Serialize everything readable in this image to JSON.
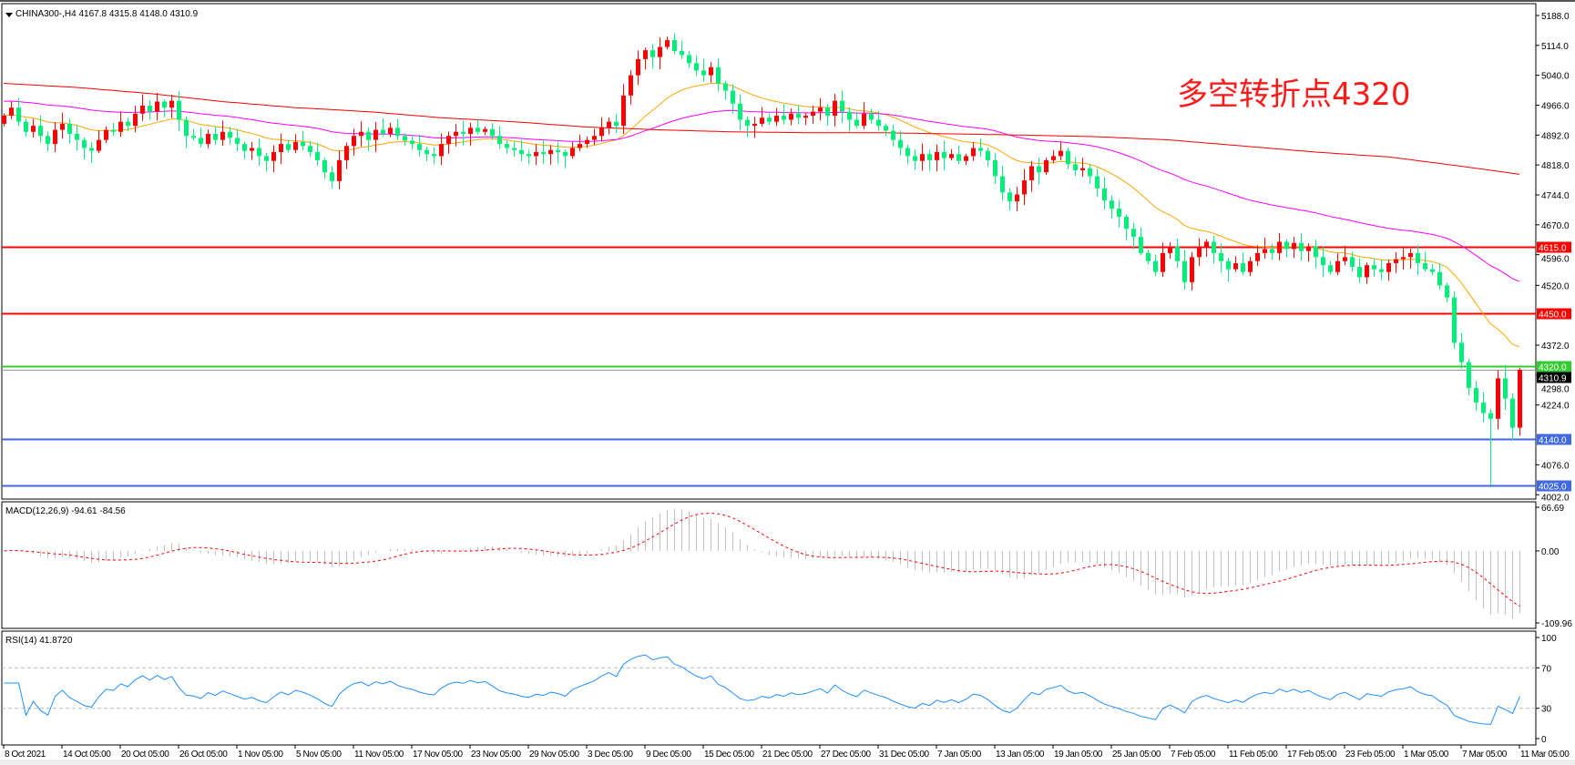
{
  "chart_data": {
    "type": "candlestick",
    "symbol_header": "CHINA300-,H4  4167.8 4315.8 4148.0 4310.9",
    "annotation": "多空转折点4320",
    "colors": {
      "up": "#ff0000",
      "down": "#00ee7a",
      "ma_fast": "#ffa500",
      "ma_mid": "#ff00ff",
      "ma_slow": "#ff0000",
      "rsi": "#1e90ff",
      "macd_hist": "#c0c0c0",
      "macd_signal": "#ff0000"
    },
    "price_axis": {
      "min": 4002.0,
      "max": 5188.0,
      "ticks": [
        "5188.0",
        "5114.0",
        "5040.0",
        "4966.0",
        "4892.0",
        "4818.0",
        "4744.0",
        "4670.0",
        "4596.0",
        "4520.0",
        "4372.0",
        "4298.0",
        "4224.0",
        "4076.0",
        "4002.0"
      ]
    },
    "first_open": 4920,
    "closes": [
      4940,
      4960,
      4925,
      4900,
      4915,
      4890,
      4870,
      4905,
      4920,
      4895,
      4880,
      4860,
      4853,
      4880,
      4905,
      4900,
      4925,
      4915,
      4945,
      4965,
      4950,
      4975,
      4960,
      4977,
      4930,
      4890,
      4885,
      4870,
      4895,
      4880,
      4900,
      4885,
      4870,
      4853,
      4860,
      4840,
      4828,
      4850,
      4870,
      4855,
      4875,
      4865,
      4850,
      4830,
      4800,
      4778,
      4830,
      4865,
      4890,
      4900,
      4880,
      4905,
      4895,
      4910,
      4890,
      4878,
      4870,
      4855,
      4845,
      4840,
      4870,
      4890,
      4900,
      4895,
      4910,
      4900,
      4907,
      4890,
      4870,
      4860,
      4855,
      4845,
      4840,
      4850,
      4845,
      4855,
      4850,
      4840,
      4860,
      4870,
      4880,
      4890,
      4910,
      4925,
      4915,
      4990,
      5040,
      5080,
      5102,
      5085,
      5110,
      5127,
      5100,
      5090,
      5070,
      5052,
      5040,
      5060,
      5020,
      5002,
      4970,
      4930,
      4915,
      4920,
      4935,
      4925,
      4940,
      4930,
      4945,
      4935,
      4940,
      4950,
      4960,
      4940,
      4977,
      4950,
      4930,
      4915,
      4945,
      4930,
      4915,
      4903,
      4880,
      4860,
      4840,
      4828,
      4845,
      4830,
      4850,
      4835,
      4845,
      4828,
      4840,
      4860,
      4853,
      4830,
      4790,
      4750,
      4728,
      4745,
      4780,
      4815,
      4800,
      4830,
      4840,
      4853,
      4820,
      4805,
      4810,
      4790,
      4760,
      4730,
      4710,
      4690,
      4660,
      4640,
      4600,
      4580,
      4553,
      4600,
      4616,
      4580,
      4528,
      4590,
      4615,
      4628,
      4600,
      4580,
      4560,
      4575,
      4553,
      4580,
      4600,
      4610,
      4600,
      4628,
      4610,
      4625,
      4605,
      4616,
      4590,
      4570,
      4553,
      4580,
      4590,
      4566,
      4540,
      4570,
      4560,
      4553,
      4575,
      4585,
      4590,
      4600,
      4575,
      4560,
      4553,
      4520,
      4490,
      4378,
      4330,
      4266,
      4230,
      4204,
      4190,
      4290,
      4240,
      4167.8,
      4310.9
    ],
    "last_bar": {
      "open": 4167.8,
      "high": 4315.8,
      "low": 4148.0,
      "close": 4310.9
    },
    "spike_low": 4025.0,
    "ma_slow_every_10_bars": [
      5020,
      5010,
      4995,
      4975,
      4960,
      4950,
      4935,
      4925,
      4912,
      4905,
      4900,
      4898,
      4898,
      4895,
      4892,
      4888,
      4880,
      4865,
      4850,
      4838,
      4815,
      4795
    ],
    "levels": [
      {
        "value": 4615.0,
        "label": "4615.0",
        "color": "#ff0000"
      },
      {
        "value": 4450.0,
        "label": "4450.0",
        "color": "#ff0000"
      },
      {
        "value": 4320.0,
        "label": "4320.0",
        "color": "#33cc33"
      },
      {
        "value": 4140.0,
        "label": "4140.0",
        "color": "#4169e1"
      },
      {
        "value": 4025.0,
        "label": "4025.0",
        "color": "#4169e1"
      }
    ],
    "current_price_label": "4310.9",
    "macd": {
      "title": "MACD(12,26,9) -94.61 -84.56",
      "max": 66.69,
      "min": -109.96,
      "ticks": [
        "66.69",
        "0.00",
        "-109.96"
      ]
    },
    "rsi": {
      "title": "RSI(14) 41.8720",
      "ticks": [
        "100",
        "70",
        "30",
        "0"
      ],
      "levels": [
        70,
        30
      ]
    },
    "time_labels": [
      "8 Oct 2021",
      "14 Oct 05:00",
      "20 Oct 05:00",
      "26 Oct 05:00",
      "1 Nov 05:00",
      "5 Nov 05:00",
      "11 Nov 05:00",
      "17 Nov 05:00",
      "23 Nov 05:00",
      "29 Nov 05:00",
      "3 Dec 05:00",
      "9 Dec 05:00",
      "15 Dec 05:00",
      "21 Dec 05:00",
      "27 Dec 05:00",
      "31 Dec 05:00",
      "7 Jan 05:00",
      "13 Jan 05:00",
      "19 Jan 05:00",
      "25 Jan 05:00",
      "7 Feb 05:00",
      "11 Feb 05:00",
      "17 Feb 05:00",
      "23 Feb 05:00",
      "1 Mar 05:00",
      "7 Mar 05:00",
      "11 Mar 05:00"
    ]
  }
}
